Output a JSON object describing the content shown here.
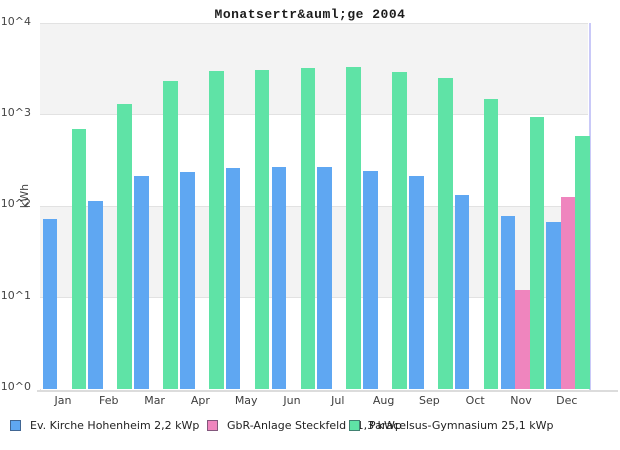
{
  "chart_data": {
    "type": "bar",
    "title": "Monatsertr&auml;ge 2004",
    "ylabel": "kWh",
    "scale": "log10",
    "ylim": [
      1,
      10000
    ],
    "yticks": [
      "10^0",
      "10^1",
      "10^2",
      "10^3",
      "10^4"
    ],
    "grid": "horizontal alternating bands, light gray",
    "legend_position": "bottom",
    "categories": [
      "Jan",
      "Feb",
      "Mar",
      "Apr",
      "May",
      "Jun",
      "Jul",
      "Aug",
      "Sep",
      "Oct",
      "Nov",
      "Dec"
    ],
    "series": [
      {
        "name": "Ev. Kirche Hohenheim 2,2 kWp",
        "color": "#5fa7f2",
        "values": [
          72,
          115,
          215,
          240,
          265,
          268,
          270,
          245,
          215,
          134,
          79,
          68
        ]
      },
      {
        "name": "GbR-Anlage Steckfeld 11,3 kWp",
        "color": "#ef85be",
        "values": [
          null,
          null,
          null,
          null,
          null,
          null,
          null,
          null,
          null,
          null,
          12,
          125
        ]
      },
      {
        "name": "Paracelsus-Gymnasium 25,1 kWp",
        "color": "#5fe3a6",
        "values": [
          700,
          1300,
          2360,
          2990,
          3060,
          3250,
          3300,
          2920,
          2520,
          1510,
          950,
          590
        ]
      }
    ]
  }
}
